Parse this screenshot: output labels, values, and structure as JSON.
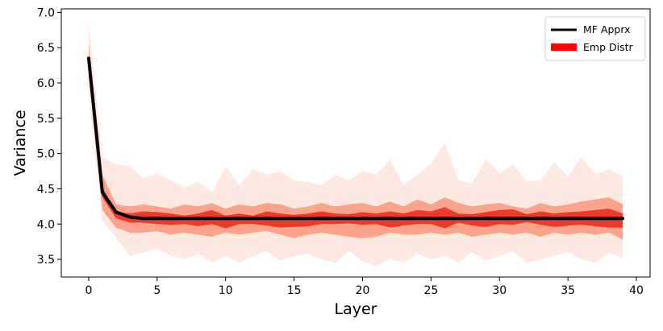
{
  "chart_data": {
    "type": "line",
    "title": "",
    "xlabel": "Layer",
    "ylabel": "Variance",
    "xlim": [
      -2,
      41
    ],
    "ylim": [
      3.25,
      7.05
    ],
    "xticks": [
      0,
      5,
      10,
      15,
      20,
      25,
      30,
      35,
      40
    ],
    "yticks": [
      3.5,
      4.0,
      4.5,
      5.0,
      5.5,
      6.0,
      6.5,
      7.0
    ],
    "xtick_labels": [
      "0",
      "5",
      "10",
      "15",
      "20",
      "25",
      "30",
      "35",
      "40"
    ],
    "ytick_labels": [
      "3.5",
      "4.0",
      "4.5",
      "5.0",
      "5.5",
      "6.0",
      "6.5",
      "7.0"
    ],
    "grid": false,
    "legend_position": "top-right",
    "legend": [
      {
        "label": "MF Apprx",
        "style": "line",
        "color": "#000000"
      },
      {
        "label": "Emp Distr",
        "style": "patch",
        "color": "#ff0000"
      }
    ],
    "x": [
      0,
      1,
      2,
      3,
      4,
      5,
      6,
      7,
      8,
      9,
      10,
      11,
      12,
      13,
      14,
      15,
      16,
      17,
      18,
      19,
      20,
      21,
      22,
      23,
      24,
      25,
      26,
      27,
      28,
      29,
      30,
      31,
      32,
      33,
      34,
      35,
      36,
      37,
      38,
      39
    ],
    "series": [
      {
        "name": "MF Apprx",
        "color": "#000000",
        "values": [
          6.35,
          4.45,
          4.17,
          4.1,
          4.08,
          4.08,
          4.08,
          4.08,
          4.08,
          4.08,
          4.08,
          4.08,
          4.08,
          4.08,
          4.08,
          4.08,
          4.08,
          4.08,
          4.08,
          4.08,
          4.08,
          4.08,
          4.08,
          4.08,
          4.08,
          4.08,
          4.08,
          4.08,
          4.08,
          4.08,
          4.08,
          4.08,
          4.08,
          4.08,
          4.08,
          4.08,
          4.08,
          4.08,
          4.08,
          4.08
        ]
      }
    ],
    "bands": [
      {
        "level": "outer",
        "color": "#fee9e2",
        "upper": [
          6.88,
          4.95,
          4.85,
          4.82,
          4.65,
          4.72,
          4.62,
          4.52,
          4.6,
          4.45,
          4.82,
          4.55,
          4.78,
          4.7,
          4.75,
          4.62,
          4.6,
          4.55,
          4.7,
          4.62,
          4.75,
          4.7,
          4.92,
          4.55,
          4.7,
          4.85,
          5.15,
          4.62,
          4.58,
          4.92,
          4.72,
          4.85,
          4.6,
          4.62,
          4.88,
          4.68,
          4.95,
          4.7,
          4.78,
          4.68
        ],
        "lower": [
          5.85,
          4.05,
          3.8,
          3.55,
          3.6,
          3.65,
          3.55,
          3.5,
          3.58,
          3.45,
          3.55,
          3.45,
          3.55,
          3.62,
          3.48,
          3.55,
          3.58,
          3.5,
          3.45,
          3.62,
          3.48,
          3.4,
          3.52,
          3.45,
          3.58,
          3.5,
          3.55,
          3.45,
          3.6,
          3.48,
          3.55,
          3.62,
          3.45,
          3.5,
          3.55,
          3.6,
          3.5,
          3.45,
          3.6,
          3.52
        ]
      },
      {
        "level": "middle",
        "color": "#fca48b",
        "upper": [
          6.55,
          4.7,
          4.28,
          4.25,
          4.28,
          4.25,
          4.22,
          4.28,
          4.25,
          4.3,
          4.22,
          4.28,
          4.25,
          4.3,
          4.28,
          4.22,
          4.25,
          4.3,
          4.25,
          4.28,
          4.3,
          4.25,
          4.32,
          4.25,
          4.35,
          4.28,
          4.38,
          4.3,
          4.25,
          4.28,
          4.3,
          4.25,
          4.22,
          4.3,
          4.25,
          4.28,
          4.32,
          4.35,
          4.38,
          4.28
        ],
        "lower": [
          6.1,
          4.2,
          3.95,
          3.88,
          3.88,
          3.9,
          3.85,
          3.88,
          3.85,
          3.82,
          3.88,
          3.85,
          3.88,
          3.9,
          3.85,
          3.8,
          3.85,
          3.88,
          3.85,
          3.82,
          3.8,
          3.82,
          3.88,
          3.85,
          3.85,
          3.88,
          3.85,
          3.88,
          3.82,
          3.85,
          3.88,
          3.85,
          3.88,
          3.82,
          3.88,
          3.85,
          3.88,
          3.85,
          3.88,
          3.78
        ]
      },
      {
        "level": "inner",
        "color": "#ec3a2c",
        "upper": [
          6.4,
          4.52,
          4.18,
          4.15,
          4.18,
          4.17,
          4.15,
          4.12,
          4.15,
          4.2,
          4.12,
          4.15,
          4.12,
          4.18,
          4.15,
          4.13,
          4.15,
          4.18,
          4.15,
          4.14,
          4.17,
          4.15,
          4.18,
          4.15,
          4.2,
          4.18,
          4.24,
          4.15,
          4.14,
          4.17,
          4.2,
          4.21,
          4.14,
          4.18,
          4.15,
          4.17,
          4.18,
          4.2,
          4.22,
          4.15
        ],
        "lower": [
          6.25,
          4.38,
          4.08,
          4.02,
          4.02,
          4.0,
          3.99,
          4.0,
          3.97,
          4.0,
          3.94,
          4.0,
          4.0,
          3.98,
          3.95,
          3.96,
          3.97,
          4.0,
          4.0,
          4.01,
          3.99,
          4.0,
          3.95,
          3.98,
          4.0,
          4.0,
          3.94,
          4.02,
          3.98,
          3.96,
          4.0,
          3.99,
          4.03,
          3.99,
          3.96,
          3.98,
          3.99,
          3.97,
          3.95,
          3.95
        ]
      }
    ]
  }
}
